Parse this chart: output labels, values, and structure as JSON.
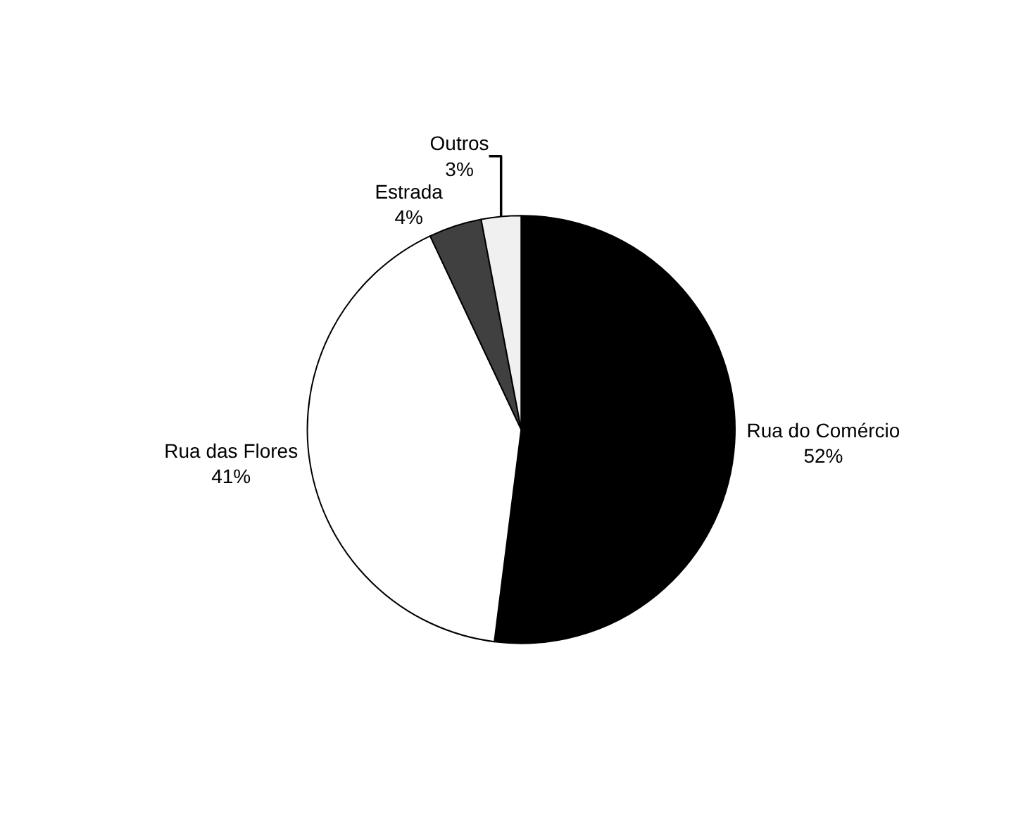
{
  "chart_data": {
    "type": "pie",
    "categories": [
      "Rua do Comércio",
      "Rua das Flores",
      "Estrada",
      "Outros"
    ],
    "values": [
      52,
      41,
      4,
      3
    ],
    "value_labels": [
      "52%",
      "41%",
      "4%",
      "3%"
    ],
    "colors": [
      "#000000",
      "#ffffff",
      "#404040",
      "#f0f0f0"
    ],
    "legend": false
  }
}
